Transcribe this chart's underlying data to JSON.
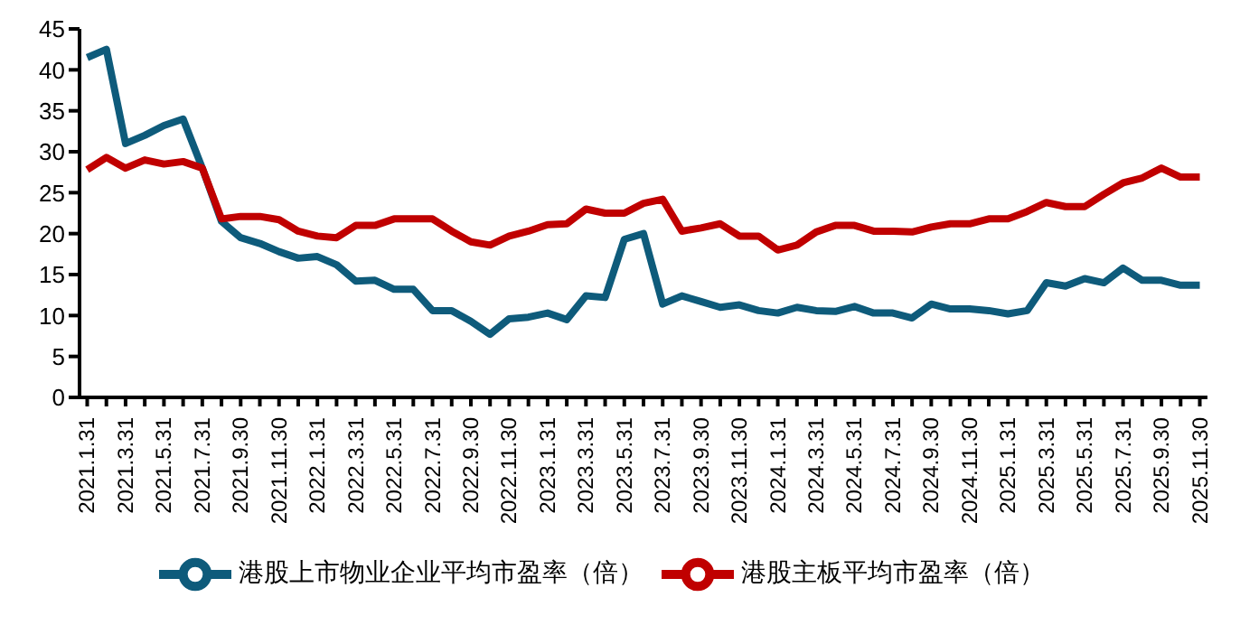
{
  "chart_data": {
    "type": "line",
    "categories": [
      "2021.1.31",
      null,
      "2021.3.31",
      null,
      "2021.5.31",
      null,
      "2021.7.31",
      null,
      "2021.9.30",
      null,
      "2021.11.30",
      null,
      "2022.1.31",
      null,
      "2022.3.31",
      null,
      "2022.5.31",
      null,
      "2022.7.31",
      null,
      "2022.9.30",
      null,
      "2022.11.30",
      null,
      "2023.1.31",
      null,
      "2023.3.31",
      null,
      "2023.5.31",
      null,
      "2023.7.31",
      null,
      "2023.9.30",
      null,
      "2023.11.30",
      null,
      "2024.1.31",
      null,
      "2024.3.31",
      null,
      "2024.5.31",
      null,
      "2024.7.31",
      null,
      "2024.9.30",
      null,
      "2024.11.30",
      null,
      "2025.1.31",
      null,
      "2025.3.31",
      null,
      "2025.5.31",
      null,
      "2025.7.31",
      null,
      "2025.9.30",
      null,
      "2025.11.30"
    ],
    "series": [
      {
        "name": "港股上市物业企业平均市盈率（倍）",
        "color": "#0e5b7b",
        "values": [
          41.5,
          42.5,
          31,
          32,
          33.2,
          34,
          28,
          21.5,
          19.5,
          18.8,
          17.8,
          17,
          17.2,
          16.2,
          14.2,
          14.3,
          13.2,
          13.2,
          10.6,
          10.6,
          9.3,
          7.7,
          9.6,
          9.8,
          10.3,
          9.5,
          12.4,
          12.2,
          19.3,
          20,
          11.4,
          12.4,
          11.7,
          11,
          11.3,
          10.6,
          10.3,
          11,
          10.6,
          10.5,
          11.1,
          10.3,
          10.3,
          9.7,
          11.4,
          10.8,
          10.8,
          10.6,
          10.2,
          10.6,
          14,
          13.6,
          14.5,
          14,
          15.8,
          14.3,
          14.3,
          13.7,
          13.7
        ]
      },
      {
        "name": "港股主板平均市盈率（倍）",
        "color": "#c00000",
        "values": [
          27.8,
          29.3,
          28,
          29,
          28.5,
          28.8,
          28,
          21.8,
          22.1,
          22.1,
          21.7,
          20.3,
          19.7,
          19.5,
          21,
          21,
          21.8,
          21.8,
          21.8,
          20.3,
          19,
          18.6,
          19.7,
          20.3,
          21.1,
          21.2,
          23,
          22.5,
          22.5,
          23.7,
          24.2,
          20.3,
          20.7,
          21.2,
          19.7,
          19.7,
          18,
          18.6,
          20.2,
          21,
          21,
          20.3,
          20.3,
          20.2,
          20.8,
          21.2,
          21.2,
          21.8,
          21.8,
          22.7,
          23.8,
          23.3,
          23.3,
          24.8,
          26.2,
          26.8,
          28,
          26.9,
          26.9
        ]
      }
    ],
    "ylim": [
      0,
      45
    ],
    "yticks": [
      0,
      5,
      10,
      15,
      20,
      25,
      30,
      35,
      40,
      45
    ],
    "grid": false,
    "legend": "bottom",
    "marker": "none",
    "line_style": "solid"
  }
}
